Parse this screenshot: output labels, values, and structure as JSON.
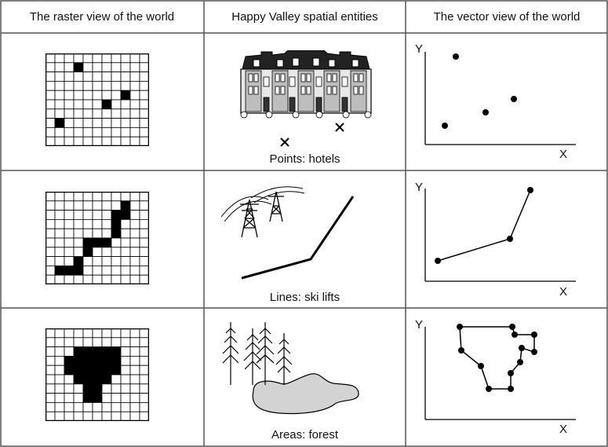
{
  "headers": {
    "raster": "The raster view of the world",
    "entities": "Happy Valley spatial entities",
    "vector": "The vector view of the world"
  },
  "rows": [
    {
      "label": "Points: hotels",
      "raster_filled_cells": [
        [
          3,
          1
        ],
        [
          8,
          4
        ],
        [
          6,
          5
        ],
        [
          1,
          7
        ]
      ]
    },
    {
      "label": "Lines: ski lifts",
      "raster_filled_cells": [
        [
          8,
          1
        ],
        [
          7,
          2
        ],
        [
          8,
          2
        ],
        [
          7,
          3
        ],
        [
          7,
          4
        ],
        [
          4,
          5
        ],
        [
          5,
          5
        ],
        [
          6,
          5
        ],
        [
          4,
          6
        ],
        [
          3,
          7
        ],
        [
          1,
          8
        ],
        [
          2,
          8
        ],
        [
          3,
          8
        ]
      ]
    },
    {
      "label": "Areas: forest",
      "raster_filled_cells": [
        [
          3,
          2
        ],
        [
          4,
          2
        ],
        [
          5,
          2
        ],
        [
          6,
          2
        ],
        [
          7,
          2
        ],
        [
          2,
          3
        ],
        [
          3,
          3
        ],
        [
          4,
          3
        ],
        [
          5,
          3
        ],
        [
          6,
          3
        ],
        [
          7,
          3
        ],
        [
          2,
          4
        ],
        [
          3,
          4
        ],
        [
          4,
          4
        ],
        [
          5,
          4
        ],
        [
          6,
          4
        ],
        [
          7,
          4
        ],
        [
          3,
          5
        ],
        [
          4,
          5
        ],
        [
          5,
          5
        ],
        [
          6,
          5
        ],
        [
          4,
          6
        ],
        [
          5,
          6
        ],
        [
          4,
          7
        ],
        [
          5,
          7
        ]
      ]
    }
  ],
  "raster_grid": {
    "cols": 11,
    "rows": 10
  },
  "axes": {
    "x": "X",
    "y": "Y"
  },
  "icons": [
    "hotel-building-icon",
    "x-marker-icon",
    "power-pylon-icon",
    "pine-tree-icon",
    "forest-blob-icon"
  ],
  "colors": {
    "ink": "#000000",
    "forest_fill": "#d3d3d3",
    "border": "#555555"
  }
}
